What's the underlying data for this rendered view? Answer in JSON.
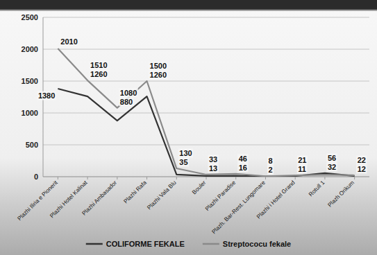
{
  "chart_data": {
    "type": "line",
    "categories": [
      "Plazhi Iliria e Pionerit",
      "Plazhi Hotel Kalinat",
      "Plazhi Ambasador",
      "Plazhi Rafa",
      "Plazhi Vala Blu",
      "Bouler",
      "Plazhi Paradise",
      "Plazh. Bar-Rest. Lungomare",
      "Plazhi i Hotel Grand",
      "Rotull 1",
      "Plazh Orikum"
    ],
    "series": [
      {
        "name": "COLIFORME FEKALE",
        "color": "#333333",
        "values": [
          1380,
          1260,
          880,
          1260,
          35,
          13,
          16,
          2,
          11,
          56,
          12
        ]
      },
      {
        "name": "Streptococu fekale",
        "color": "#8a8a8a",
        "values": [
          2010,
          1510,
          1080,
          1500,
          130,
          33,
          46,
          8,
          21,
          32,
          22
        ]
      }
    ],
    "ylim": [
      0,
      2500
    ],
    "yticks": [
      0,
      500,
      1000,
      1500,
      2000,
      2500
    ],
    "grid": true,
    "legend": "bottom",
    "data_labels": true,
    "marker": "none"
  }
}
